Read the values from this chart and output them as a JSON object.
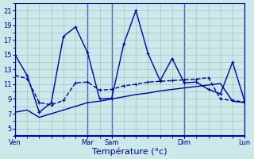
{
  "xlabel": "Température (°c)",
  "background_color": "#cce8e8",
  "line_color": "#0000aa",
  "grid_color": "#99bbbb",
  "ylim": [
    4,
    22
  ],
  "yticks": [
    5,
    7,
    9,
    11,
    13,
    15,
    17,
    19,
    21
  ],
  "xlim": [
    0,
    19
  ],
  "major_xtick_positions": [
    0,
    6,
    8,
    14,
    19
  ],
  "major_xtick_labels": [
    "Ven",
    "Mar",
    "Sam",
    "Dim",
    "Lun"
  ],
  "line1_y": [
    15.0,
    12.2,
    7.2,
    8.5,
    17.5,
    18.8,
    15.3,
    9.0,
    9.1,
    16.5,
    21.0,
    15.2,
    11.5,
    14.5,
    11.2,
    11.3,
    10.3,
    9.7,
    14.0,
    8.7
  ],
  "line2_y": [
    12.2,
    11.8,
    8.5,
    8.2,
    8.8,
    11.2,
    11.3,
    10.2,
    10.3,
    10.8,
    11.0,
    11.3,
    11.4,
    11.5,
    11.6,
    11.7,
    11.9,
    9.0,
    8.8,
    8.6
  ],
  "line3_y": [
    7.2,
    7.5,
    6.5,
    7.0,
    7.5,
    8.0,
    8.5,
    8.7,
    9.0,
    9.3,
    9.6,
    9.8,
    10.1,
    10.3,
    10.5,
    10.7,
    10.9,
    11.1,
    8.7,
    8.5
  ],
  "n_points": 20,
  "marker_size": 2.5,
  "line_width": 1.0,
  "xlabel_fontsize": 8,
  "tick_fontsize": 6
}
